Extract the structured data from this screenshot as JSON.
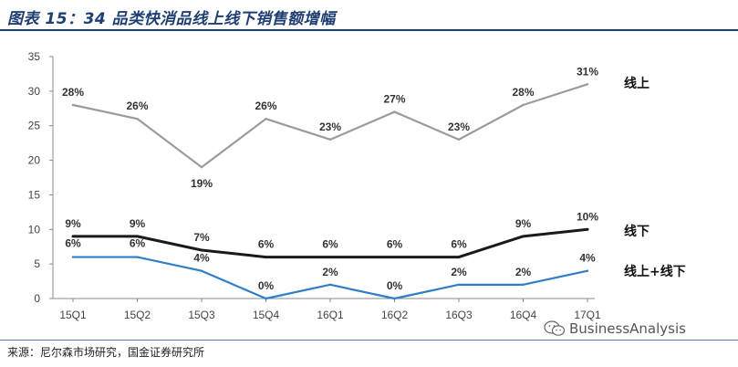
{
  "figure": {
    "title": "图表 15：34 品类快消品线上线下销售额增幅",
    "source": "来源：尼尔森市场研究，国金证券研究所",
    "watermark": "BusinessAnalysis",
    "watermark_icon": "wechat-icon"
  },
  "chart_data": {
    "type": "line",
    "title": "图表 15：34 品类快消品线上线下销售额增幅",
    "xlabel": "",
    "ylabel": "",
    "ylim": [
      0,
      35
    ],
    "yticks": [
      0,
      5,
      10,
      15,
      20,
      25,
      30,
      35
    ],
    "grid": false,
    "categories": [
      "15Q1",
      "15Q2",
      "15Q3",
      "15Q4",
      "16Q1",
      "16Q2",
      "16Q3",
      "16Q4",
      "17Q1"
    ],
    "series": [
      {
        "name": "线上",
        "color": "#9b9b9b",
        "values": [
          28,
          26,
          19,
          26,
          23,
          27,
          23,
          28,
          31
        ],
        "labels": [
          "28%",
          "26%",
          "19%",
          "26%",
          "23%",
          "27%",
          "23%",
          "28%",
          "31%"
        ]
      },
      {
        "name": "线下",
        "color": "#1a1a1a",
        "values": [
          9,
          9,
          7,
          6,
          6,
          6,
          6,
          9,
          10
        ],
        "labels": [
          "9%",
          "9%",
          "7%",
          "6%",
          "6%",
          "6%",
          "6%",
          "9%",
          "10%"
        ]
      },
      {
        "name": "线上+线下",
        "color": "#2f7ec8",
        "values": [
          6,
          6,
          4,
          0,
          2,
          0,
          2,
          2,
          4
        ],
        "labels": [
          "6%",
          "6%",
          "4%",
          "0%",
          "2%",
          "0%",
          "2%",
          "2%",
          "4%"
        ]
      }
    ]
  }
}
